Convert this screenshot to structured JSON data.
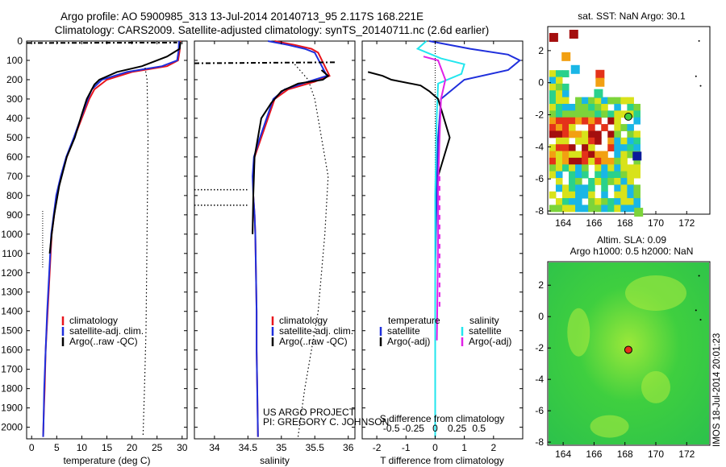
{
  "header": {
    "title_line1": "Argo profile: AO 5900985_313 13-Jul-2014 20140713_95 2.117S 168.221E",
    "title_line2": "Climatology: CARS2009. Satellite-adjusted climatology: synTS_20140711.nc (2.6d earlier)"
  },
  "colors": {
    "climatology": "#e8141c",
    "satellite": "#1f2fdc",
    "argo": "#000000",
    "t_satellite": "#1f2fdc",
    "s_satellite": "#22e6ee",
    "s_argo": "#e022e6",
    "sla_green": "#3fcf3f"
  },
  "chart_data": [
    {
      "id": "temperature",
      "type": "line",
      "xlabel": "temperature (deg C)",
      "xlim": [
        -1,
        31
      ],
      "xticks": [
        0,
        5,
        10,
        15,
        20,
        25,
        30
      ],
      "ylim": [
        2060,
        0
      ],
      "yticks": [
        0,
        100,
        200,
        300,
        400,
        500,
        600,
        700,
        800,
        900,
        1000,
        1100,
        1200,
        1300,
        1400,
        1500,
        1600,
        1700,
        1800,
        1900,
        2000
      ],
      "legend": [
        "climatology",
        "satellite-adj. clim.",
        "Argo(..raw -QC)"
      ],
      "series": [
        {
          "name": "climatology",
          "color_key": "climatology",
          "x": [
            29.6,
            29.5,
            29.2,
            27.0,
            20.0,
            15.0,
            12.5,
            11.5,
            10.0,
            8.5,
            7.0,
            5.9,
            5.0,
            4.5,
            4.0,
            3.6,
            3.2,
            2.8,
            2.6,
            2.4,
            2.3
          ],
          "y": [
            0,
            50,
            100,
            130,
            160,
            200,
            250,
            300,
            400,
            500,
            600,
            700,
            800,
            900,
            1000,
            1200,
            1400,
            1600,
            1800,
            1950,
            2050
          ]
        },
        {
          "name": "satellite-adj. clim.",
          "color_key": "satellite",
          "x": [
            29.4,
            29.3,
            29.0,
            26.0,
            19.0,
            14.0,
            12.0,
            11.2,
            9.8,
            8.4,
            6.9,
            5.8,
            4.9,
            4.4,
            3.9,
            3.5,
            3.1,
            2.8,
            2.5,
            2.4,
            2.3
          ],
          "y": [
            0,
            50,
            100,
            130,
            160,
            200,
            250,
            300,
            400,
            500,
            600,
            700,
            800,
            900,
            1000,
            1200,
            1400,
            1600,
            1800,
            1950,
            2050
          ]
        },
        {
          "name": "Argo(..raw -QC)",
          "color_key": "argo",
          "x": [
            29.7,
            29.6,
            29.5,
            27.0,
            22.0,
            17.0,
            13.5,
            12.5,
            11.0,
            10.0,
            8.6,
            7.0,
            5.5,
            4.5,
            4.0,
            3.6
          ],
          "y": [
            5,
            20,
            40,
            80,
            130,
            160,
            200,
            225,
            300,
            380,
            500,
            600,
            750,
            900,
            1000,
            1100
          ]
        },
        {
          "name": "",
          "color_key": "argo",
          "style": "dotted",
          "x": [
            22.5,
            23.0,
            23.2,
            23.0,
            22.8,
            22.5,
            22.2
          ],
          "y": [
            120,
            200,
            500,
            1000,
            1500,
            1800,
            2050
          ]
        }
      ]
    },
    {
      "id": "salinity",
      "type": "line",
      "xlabel": "salinity",
      "xlim": [
        33.7,
        36.1
      ],
      "xticks": [
        34,
        34.5,
        35,
        35.5,
        36
      ],
      "ylim": [
        2060,
        0
      ],
      "legend": [
        "climatology",
        "satellite-adj. clim.",
        "Argo(..raw -QC)"
      ],
      "series": [
        {
          "name": "climatology",
          "color_key": "climatology",
          "x": [
            34.9,
            35.2,
            35.45,
            35.55,
            35.72,
            35.5,
            35.1,
            34.9,
            34.8,
            34.7,
            34.6,
            34.58,
            34.58,
            34.6,
            34.61,
            34.62,
            34.63,
            34.63,
            34.64,
            34.65
          ],
          "y": [
            0,
            20,
            40,
            60,
            180,
            210,
            250,
            300,
            400,
            500,
            600,
            700,
            800,
            900,
            1000,
            1200,
            1400,
            1600,
            1800,
            2050
          ]
        },
        {
          "name": "satellite-adj. clim.",
          "color_key": "satellite",
          "x": [
            34.8,
            35.1,
            35.35,
            35.5,
            35.68,
            35.4,
            35.05,
            34.88,
            34.78,
            34.68,
            34.59,
            34.57,
            34.58,
            34.6,
            34.61,
            34.62,
            34.63,
            34.63,
            34.64,
            34.65
          ],
          "y": [
            0,
            20,
            40,
            60,
            180,
            210,
            250,
            300,
            400,
            500,
            600,
            700,
            800,
            900,
            1000,
            1200,
            1400,
            1600,
            1800,
            2050
          ]
        },
        {
          "name": "Argo(..raw -QC)",
          "color_key": "argo",
          "x": [
            35.6,
            35.7,
            35.62,
            35.25,
            35.0,
            34.85,
            34.7,
            34.6,
            34.58,
            34.57
          ],
          "y": [
            150,
            180,
            200,
            220,
            260,
            320,
            400,
            600,
            800,
            1000
          ]
        },
        {
          "name": "",
          "color_key": "argo",
          "style": "dotted",
          "x": [
            35.2,
            35.4,
            35.5,
            35.6,
            35.7,
            35.65,
            35.55,
            35.35,
            35.25
          ],
          "y": [
            120,
            200,
            300,
            500,
            700,
            1000,
            1400,
            1800,
            2050
          ]
        }
      ]
    },
    {
      "id": "difference",
      "type": "line",
      "xlabel_top": "S difference from climatology",
      "xlabel": "T difference from climatology",
      "xlim": [
        -2.5,
        3.0
      ],
      "xticks_T": [
        -2,
        -1,
        0,
        1,
        2
      ],
      "xticks_S_labels": [
        "-0.5",
        "-0.25",
        "0",
        "0.25",
        "0.5"
      ],
      "ylim": [
        2060,
        0
      ],
      "legend_headers": [
        "temperature",
        "salinity"
      ],
      "legend": [
        "satellite",
        "Argo(-adj)",
        "satellite",
        "Argo(-adj)"
      ],
      "series": [
        {
          "name": "satellite",
          "color_key": "t_satellite",
          "x": [
            -0.2,
            1.2,
            2.5,
            2.9,
            2.5,
            1.0,
            0.2,
            0.1,
            0.05,
            0,
            0,
            0
          ],
          "y": [
            0,
            40,
            70,
            100,
            150,
            200,
            300,
            500,
            800,
            1200,
            1600,
            2050
          ]
        },
        {
          "name": "salinity satellite",
          "color_key": "s_satellite",
          "x": [
            -0.3,
            -0.6,
            0.2,
            1.0,
            0.9,
            0.1,
            0.05,
            0,
            0,
            0
          ],
          "y": [
            0,
            40,
            90,
            120,
            170,
            220,
            400,
            800,
            1400,
            2050
          ]
        },
        {
          "name": "Argo(-adj)",
          "color_key": "argo",
          "x": [
            -2.3,
            -1.8,
            -1.5,
            -0.5,
            -0.2,
            0.1,
            0.5,
            0.3,
            0.1
          ],
          "y": [
            160,
            180,
            200,
            230,
            260,
            300,
            500,
            600,
            700
          ]
        },
        {
          "name": "salinity Argo(-adj)",
          "color_key": "s_argo",
          "x": [
            -0.4,
            0.1,
            0.35,
            0.2,
            0.15,
            0.1,
            0.1,
            0.08,
            0.06
          ],
          "y": [
            80,
            100,
            200,
            300,
            500,
            750,
            1000,
            1300,
            1550
          ]
        }
      ]
    },
    {
      "id": "sst_map",
      "type": "heatmap",
      "title": "sat. SST: NaN Argo: 30.1",
      "xlim": [
        163,
        173.5
      ],
      "ylim": [
        -8.2,
        3.5
      ],
      "xticks": [
        164,
        166,
        168,
        170,
        172
      ],
      "yticks": [
        2,
        0,
        -2,
        -4,
        -6,
        -8
      ],
      "argo_marker": [
        168.221,
        -2.117
      ]
    },
    {
      "id": "sla_map",
      "type": "heatmap",
      "title": "Altim. SLA: 0.09",
      "subtitle": "Argo h1000: 0.5 h2000: NaN",
      "xlim": [
        163,
        173.5
      ],
      "ylim": [
        -8.2,
        3.5
      ],
      "xticks": [
        164,
        166,
        168,
        170,
        172
      ],
      "yticks": [
        2,
        0,
        -2,
        -4,
        -6,
        -8
      ],
      "argo_marker": [
        168.221,
        -2.117
      ]
    }
  ],
  "credits": {
    "project": "US ARGO PROJECT",
    "pi": "PI: GREGORY C. JOHNSON",
    "stamp": "IMOS 18-Jul-2014 20:01:23"
  }
}
